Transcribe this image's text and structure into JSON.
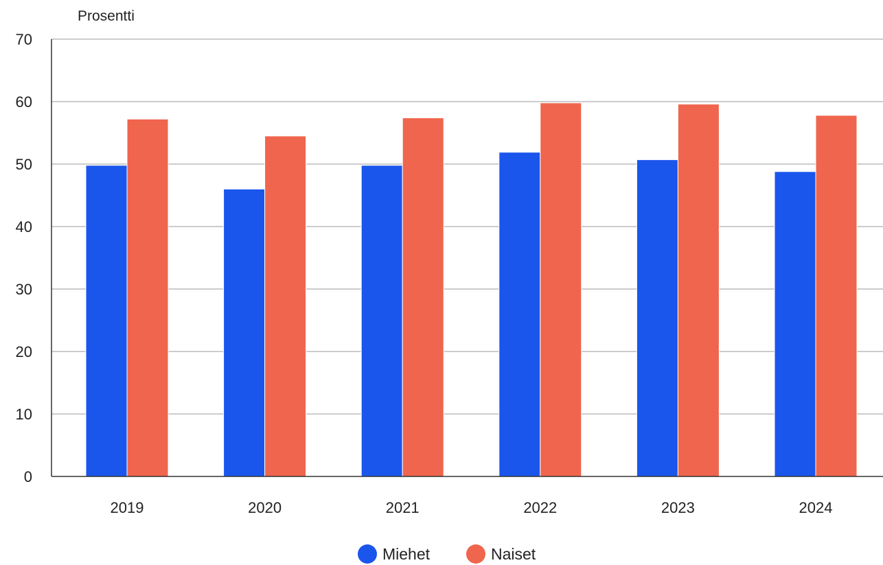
{
  "chart_data": {
    "type": "bar",
    "title": "",
    "ylabel": "Prosentti",
    "xlabel": "",
    "categories": [
      "2019",
      "2020",
      "2021",
      "2022",
      "2023",
      "2024"
    ],
    "series": [
      {
        "name": "Miehet",
        "color": "#1a56ec",
        "values": [
          49.8,
          46.0,
          49.8,
          51.9,
          50.7,
          48.8
        ]
      },
      {
        "name": "Naiset",
        "color": "#f0654d",
        "values": [
          57.2,
          54.5,
          57.4,
          59.8,
          59.6,
          57.8
        ]
      }
    ],
    "ylim": [
      0,
      70
    ],
    "yticks": [
      0,
      10,
      20,
      30,
      40,
      50,
      60,
      70
    ],
    "grid": true,
    "legend": "bottom-center"
  }
}
